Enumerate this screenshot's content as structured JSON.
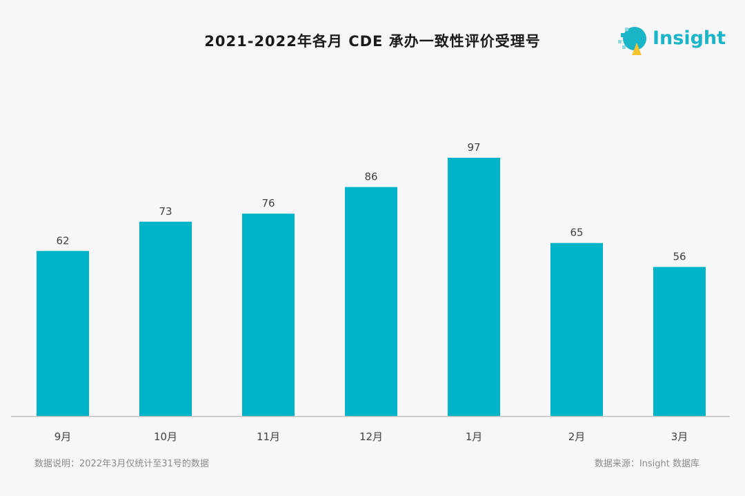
{
  "header": {
    "title": "2021-2022年各月 CDE 承办一致性评价受理号",
    "brand_name": "Insight"
  },
  "chart_data": {
    "type": "bar",
    "title": "2021-2022年各月 CDE 承办一致性评价受理号",
    "categories": [
      "9月",
      "10月",
      "11月",
      "12月",
      "1月",
      "2月",
      "3月"
    ],
    "values": [
      62,
      73,
      76,
      86,
      97,
      65,
      56
    ],
    "ylim": [
      0,
      100
    ],
    "xlabel": "",
    "ylabel": "",
    "grid": false,
    "data_labels": true,
    "bar_color": "#00b3c9"
  },
  "footer": {
    "note": "数据说明：2022年3月仅统计至31号的数据",
    "source": "数据来源：Insight 数据库"
  },
  "colors": {
    "bar": "#00b3c9",
    "axis": "#bfbfbf",
    "label": "#404040",
    "brand": "#1bb5c8"
  }
}
